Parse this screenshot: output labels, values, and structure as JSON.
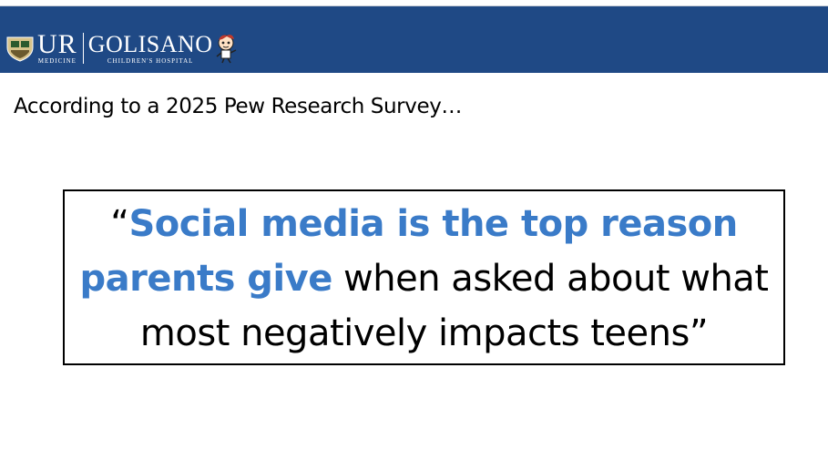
{
  "header": {
    "ur_label": "UR",
    "medicine_label": "MEDICINE",
    "golisano_label": "GOLISANO",
    "childrens_label": "CHILDREN'S HOSPITAL",
    "banner_color": "#1f4985"
  },
  "content": {
    "intro": "According to a 2025 Pew Research Survey…",
    "quote_open": "“",
    "quote_highlight": "Social media is the top reason parents give",
    "quote_rest": " when asked about what most negatively impacts teens”",
    "highlight_color": "#3a7bc8"
  }
}
